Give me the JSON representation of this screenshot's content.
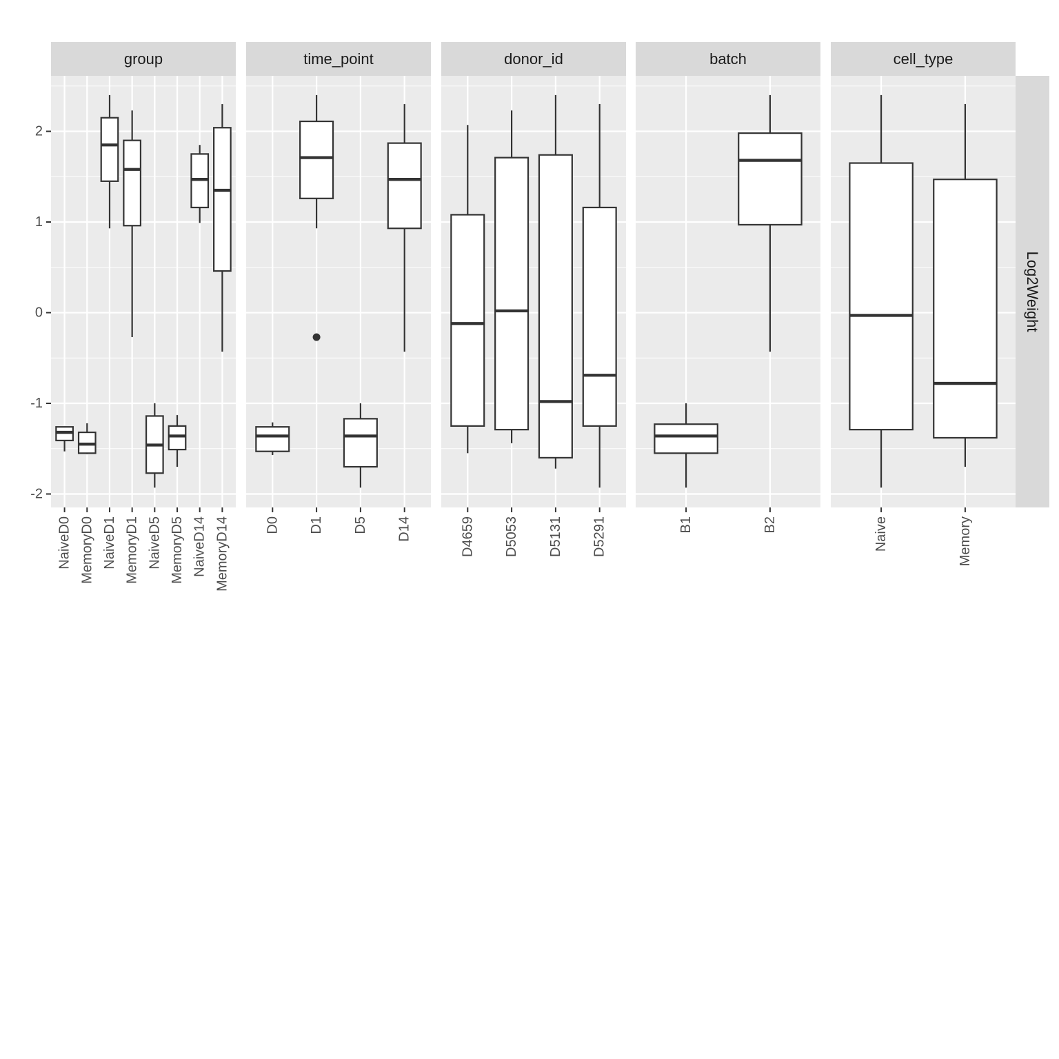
{
  "chart_data": {
    "type": "boxplot",
    "facet_strip_right": "Log2Weight",
    "y_ticks": [
      -2,
      -1,
      0,
      1,
      2
    ],
    "y_tick_labels": [
      "-2",
      "-1",
      "0",
      "1",
      "2"
    ],
    "ylim": [
      -2.15,
      2.6
    ],
    "panels": [
      {
        "title": "group",
        "categories": [
          "NaiveD0",
          "MemoryD0",
          "NaiveD1",
          "MemoryD1",
          "NaiveD5",
          "MemoryD5",
          "NaiveD14",
          "MemoryD14"
        ],
        "boxes": [
          {
            "min": -1.53,
            "q1": -1.41,
            "median": -1.32,
            "q3": -1.26,
            "max": -1.26,
            "outliers": []
          },
          {
            "min": -1.56,
            "q1": -1.55,
            "median": -1.45,
            "q3": -1.32,
            "max": -1.22,
            "outliers": []
          },
          {
            "min": 0.93,
            "q1": 1.45,
            "median": 1.85,
            "q3": 2.15,
            "max": 2.4,
            "outliers": []
          },
          {
            "min": -0.27,
            "q1": 0.96,
            "median": 1.58,
            "q3": 1.9,
            "max": 2.23,
            "outliers": []
          },
          {
            "min": -1.93,
            "q1": -1.77,
            "median": -1.46,
            "q3": -1.14,
            "max": -1.0,
            "outliers": []
          },
          {
            "min": -1.7,
            "q1": -1.51,
            "median": -1.36,
            "q3": -1.25,
            "max": -1.13,
            "outliers": []
          },
          {
            "min": 0.99,
            "q1": 1.16,
            "median": 1.47,
            "q3": 1.75,
            "max": 1.85,
            "outliers": []
          },
          {
            "min": -0.43,
            "q1": 0.46,
            "median": 1.35,
            "q3": 2.04,
            "max": 2.3,
            "outliers": []
          }
        ]
      },
      {
        "title": "time_point",
        "categories": [
          "D0",
          "D1",
          "D5",
          "D14"
        ],
        "boxes": [
          {
            "min": -1.57,
            "q1": -1.53,
            "median": -1.36,
            "q3": -1.26,
            "max": -1.21,
            "outliers": []
          },
          {
            "min": 0.93,
            "q1": 1.26,
            "median": 1.71,
            "q3": 2.11,
            "max": 2.4,
            "outliers": [
              -0.27
            ]
          },
          {
            "min": -1.93,
            "q1": -1.7,
            "median": -1.36,
            "q3": -1.17,
            "max": -1.0,
            "outliers": []
          },
          {
            "min": -0.43,
            "q1": 0.93,
            "median": 1.47,
            "q3": 1.87,
            "max": 2.3,
            "outliers": []
          }
        ]
      },
      {
        "title": "donor_id",
        "categories": [
          "D4659",
          "D5053",
          "D5131",
          "D5291"
        ],
        "boxes": [
          {
            "min": -1.55,
            "q1": -1.25,
            "median": -0.12,
            "q3": 1.08,
            "max": 2.07,
            "outliers": []
          },
          {
            "min": -1.44,
            "q1": -1.29,
            "median": 0.02,
            "q3": 1.71,
            "max": 2.23,
            "outliers": []
          },
          {
            "min": -1.72,
            "q1": -1.6,
            "median": -0.98,
            "q3": 1.74,
            "max": 2.4,
            "outliers": []
          },
          {
            "min": -1.93,
            "q1": -1.25,
            "median": -0.69,
            "q3": 1.16,
            "max": 2.3,
            "outliers": []
          }
        ]
      },
      {
        "title": "batch",
        "categories": [
          "B1",
          "B2"
        ],
        "boxes": [
          {
            "min": -1.93,
            "q1": -1.55,
            "median": -1.36,
            "q3": -1.23,
            "max": -1.0,
            "outliers": []
          },
          {
            "min": -0.43,
            "q1": 0.97,
            "median": 1.68,
            "q3": 1.98,
            "max": 2.4,
            "outliers": []
          }
        ]
      },
      {
        "title": "cell_type",
        "categories": [
          "Naive",
          "Memory"
        ],
        "boxes": [
          {
            "min": -1.93,
            "q1": -1.29,
            "median": -0.03,
            "q3": 1.65,
            "max": 2.4,
            "outliers": []
          },
          {
            "min": -1.7,
            "q1": -1.38,
            "median": -0.78,
            "q3": 1.47,
            "max": 2.3,
            "outliers": []
          }
        ]
      }
    ]
  }
}
